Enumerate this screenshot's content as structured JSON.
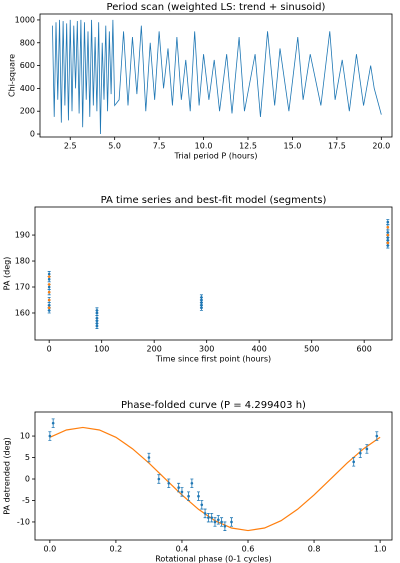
{
  "chart_data": [
    {
      "type": "line",
      "title": "Period scan (weighted LS: trend + sinusoid)",
      "xlabel": "Trial period P (hours)",
      "ylabel": "Chi-square",
      "xlim": [
        0.8,
        20.6
      ],
      "ylim": [
        -26,
        1052
      ],
      "xticks": [
        2.5,
        {
          "value": 5,
          "label": "5.0"
        },
        7.5,
        {
          "value": 10,
          "label": "10.0"
        },
        12.5,
        {
          "value": 15,
          "label": "15.0"
        },
        17.5,
        {
          "value": 20,
          "label": "20.0"
        }
      ],
      "yticks": [
        0,
        200,
        400,
        600,
        800,
        1000
      ],
      "series": [
        {
          "color": "#1f77b4",
          "style": "line",
          "x": [
            1.5,
            1.6,
            1.7,
            1.8,
            1.9,
            2.0,
            2.1,
            2.2,
            2.3,
            2.4,
            2.5,
            2.6,
            2.7,
            2.8,
            2.9,
            3.0,
            3.1,
            3.2,
            3.3,
            3.4,
            3.5,
            3.6,
            3.7,
            3.8,
            3.9,
            4.0,
            4.1,
            4.2,
            4.3,
            4.4,
            4.5,
            4.6,
            4.7,
            4.8,
            4.9,
            5.0,
            5.25,
            5.5,
            5.75,
            6.0,
            6.25,
            6.5,
            6.75,
            7.0,
            7.25,
            7.5,
            7.75,
            8.0,
            8.25,
            8.5,
            8.75,
            9.0,
            9.25,
            9.5,
            9.75,
            10.0,
            10.3,
            10.6,
            10.9,
            11.3,
            11.6,
            12.0,
            12.3,
            12.9,
            13.2,
            13.6,
            14.0,
            14.3,
            14.8,
            15.3,
            15.6,
            16.0,
            16.6,
            17.1,
            17.4,
            17.8,
            18.2,
            18.6,
            19.0,
            19.4,
            19.6,
            20.0
          ],
          "values": [
            950,
            150,
            980,
            300,
            1000,
            100,
            990,
            250,
            970,
            120,
            1000,
            200,
            950,
            400,
            990,
            180,
            1000,
            60,
            980,
            300,
            900,
            150,
            1000,
            250,
            850,
            200,
            980,
            0,
            800,
            300,
            950,
            200,
            900,
            350,
            1000,
            250,
            300,
            900,
            250,
            850,
            350,
            950,
            200,
            800,
            300,
            900,
            400,
            750,
            250,
            850,
            300,
            650,
            200,
            900,
            250,
            700,
            300,
            650,
            200,
            700,
            180,
            850,
            200,
            700,
            150,
            900,
            250,
            750,
            200,
            850,
            300,
            700,
            250,
            900,
            300,
            650,
            200,
            700,
            250,
            600,
            400,
            170
          ]
        }
      ]
    },
    {
      "type": "scatter",
      "title": "PA time series and best-fit model (segments)",
      "xlabel": "Time since first point (hours)",
      "ylabel": "PA (deg)",
      "xlim": [
        -27,
        653
      ],
      "ylim": [
        149.6,
        200.8
      ],
      "xticks": [
        0,
        100,
        200,
        300,
        400,
        500,
        600
      ],
      "yticks": [
        160,
        170,
        180,
        190
      ],
      "series": [
        {
          "color": "#1f77b4",
          "style": "errorbar",
          "x": [
            0,
            0,
            0,
            0,
            0,
            0,
            0,
            0,
            91,
            91,
            91,
            91,
            91,
            91,
            290,
            290,
            290,
            290,
            290,
            645,
            645,
            645,
            645,
            645,
            645,
            645,
            645
          ],
          "values": [
            161,
            162,
            163,
            165,
            168,
            170,
            173,
            175,
            155,
            156,
            157,
            158,
            160,
            161,
            162,
            163,
            164,
            165,
            166,
            186,
            187,
            188,
            189,
            190,
            191,
            193,
            195
          ],
          "errors": [
            1,
            1,
            1,
            1,
            1,
            1,
            1,
            1,
            1,
            1,
            1,
            1,
            1,
            1,
            1,
            1,
            1,
            1,
            1,
            1,
            1,
            1,
            1,
            1,
            1,
            1,
            1
          ]
        },
        {
          "color": "#ff7f0e",
          "style": "marker",
          "x": [
            0,
            0,
            0,
            0,
            0,
            645,
            645,
            645
          ],
          "values": [
            162,
            165,
            168,
            171,
            174,
            187,
            190,
            193
          ]
        }
      ]
    },
    {
      "type": "scatter",
      "title": "Phase-folded curve (P = 4.299403 h)",
      "xlabel": "Rotational phase (0-1 cycles)",
      "ylabel": "PA detrended (deg)",
      "xlim": [
        -0.045,
        1.036
      ],
      "ylim": [
        -14.2,
        15.6
      ],
      "xticks": [
        {
          "value": 0,
          "label": "0.0"
        },
        0.2,
        0.4,
        0.6,
        0.8,
        {
          "value": 1,
          "label": "1.0"
        }
      ],
      "yticks": [
        -10,
        -5,
        0,
        5,
        10
      ],
      "series": [
        {
          "color": "#ff7f0e",
          "style": "line",
          "x": [
            0,
            0.05,
            0.1,
            0.15,
            0.2,
            0.25,
            0.3,
            0.35,
            0.4,
            0.45,
            0.5,
            0.55,
            0.6,
            0.65,
            0.7,
            0.75,
            0.8,
            0.85,
            0.9,
            0.95,
            1.0
          ],
          "values": [
            9.71,
            11.41,
            12,
            11.41,
            9.71,
            7.05,
            3.71,
            0,
            -3.71,
            -7.05,
            -9.71,
            -11.41,
            -12,
            -11.41,
            -9.71,
            -7.05,
            -3.71,
            0,
            3.71,
            7.05,
            9.71
          ]
        },
        {
          "color": "#1f77b4",
          "style": "errorbar",
          "x": [
            0.0,
            0.01,
            0.3,
            0.33,
            0.36,
            0.39,
            0.4,
            0.42,
            0.43,
            0.45,
            0.46,
            0.47,
            0.48,
            0.49,
            0.5,
            0.51,
            0.52,
            0.53,
            0.55,
            0.92,
            0.94,
            0.96,
            0.99
          ],
          "values": [
            10,
            13,
            5,
            0,
            -1,
            -2,
            -3,
            -4,
            -1,
            -4,
            -6,
            -8,
            -9,
            -9,
            -10,
            -9.5,
            -10,
            -11,
            -10,
            4,
            6,
            7,
            10
          ],
          "errors": [
            1,
            1,
            1,
            1,
            1,
            1,
            1,
            1,
            1,
            1,
            1,
            1,
            1,
            1,
            1,
            1,
            1,
            1,
            1,
            1,
            1,
            1,
            1
          ]
        }
      ]
    }
  ]
}
